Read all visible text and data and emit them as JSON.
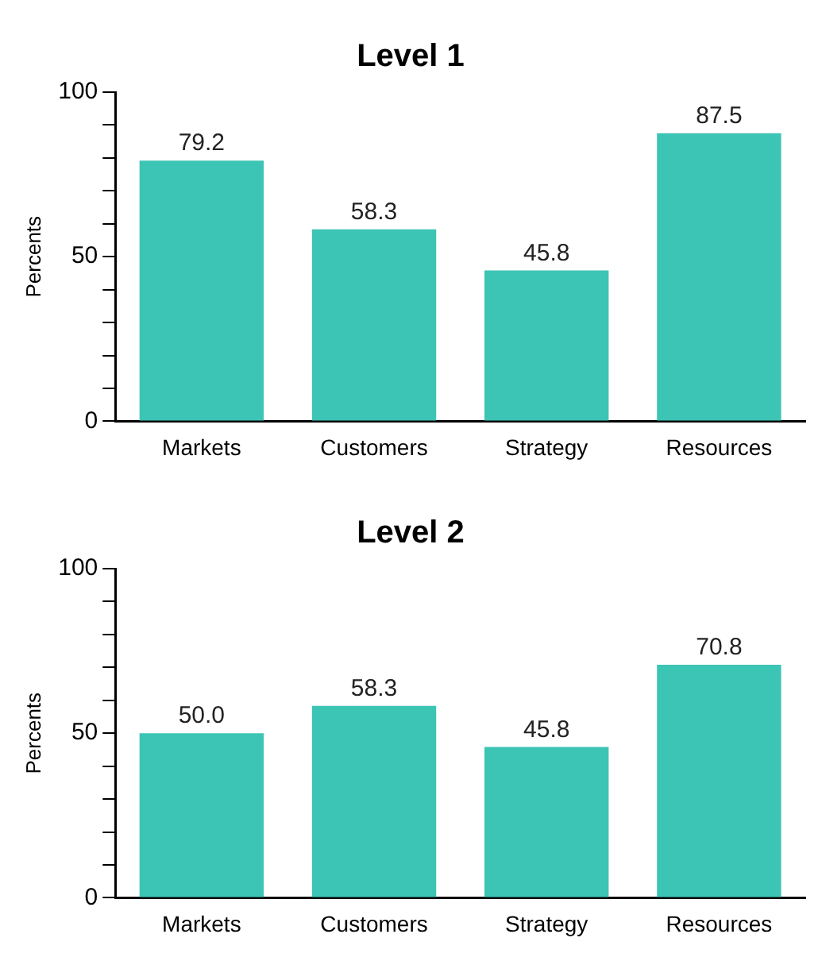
{
  "chart_data": [
    {
      "type": "bar",
      "title": "Level 1",
      "ylabel": "Percents",
      "categories": [
        "Markets",
        "Customers",
        "Strategy",
        "Resources"
      ],
      "values": [
        79.2,
        58.3,
        45.8,
        87.5
      ],
      "value_labels": [
        "79.2",
        "58.3",
        "45.8",
        "87.5"
      ],
      "color": "#3cc4b4",
      "ylim": [
        0,
        100
      ],
      "yticks": [
        0,
        {
          "value": 10,
          "label": null
        },
        {
          "value": 20,
          "label": null
        },
        {
          "value": 30,
          "label": null
        },
        {
          "value": 40,
          "label": null
        },
        50,
        {
          "value": 60,
          "label": null
        },
        {
          "value": 70,
          "label": null
        },
        {
          "value": 80,
          "label": null
        },
        {
          "value": 90,
          "label": null
        },
        100
      ],
      "grid": false,
      "legend": false
    },
    {
      "type": "bar",
      "title": "Level 2",
      "ylabel": "Percents",
      "categories": [
        "Markets",
        "Customers",
        "Strategy",
        "Resources"
      ],
      "values": [
        50.0,
        58.3,
        45.8,
        70.8
      ],
      "value_labels": [
        "50.0",
        "58.3",
        "45.8",
        "70.8"
      ],
      "color": "#3cc4b4",
      "ylim": [
        0,
        100
      ],
      "yticks": [
        0,
        {
          "value": 10,
          "label": null
        },
        {
          "value": 20,
          "label": null
        },
        {
          "value": 30,
          "label": null
        },
        {
          "value": 40,
          "label": null
        },
        50,
        {
          "value": 60,
          "label": null
        },
        {
          "value": 70,
          "label": null
        },
        {
          "value": 80,
          "label": null
        },
        {
          "value": 90,
          "label": null
        },
        100
      ],
      "grid": false,
      "legend": false
    }
  ]
}
